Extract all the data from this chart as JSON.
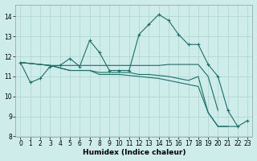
{
  "xlabel": "Humidex (Indice chaleur)",
  "bg_color": "#cdecea",
  "grid_color": "#aad4d0",
  "line_color": "#1e6e6a",
  "xlim": [
    -0.5,
    23.5
  ],
  "ylim": [
    8.0,
    14.6
  ],
  "yticks": [
    8,
    9,
    10,
    11,
    12,
    13,
    14
  ],
  "xticks": [
    0,
    1,
    2,
    3,
    4,
    5,
    6,
    7,
    8,
    9,
    10,
    11,
    12,
    13,
    14,
    15,
    16,
    17,
    18,
    19,
    20,
    21,
    22,
    23
  ],
  "lines": [
    {
      "x": [
        0,
        1,
        2,
        3,
        4,
        5,
        6,
        7,
        8,
        9,
        10,
        11,
        12,
        13,
        14,
        15,
        16,
        17,
        18,
        19,
        20,
        21,
        22,
        23
      ],
      "y": [
        11.7,
        10.7,
        10.9,
        11.5,
        11.55,
        11.9,
        11.5,
        12.8,
        12.2,
        11.3,
        11.3,
        11.3,
        13.1,
        13.6,
        14.1,
        13.8,
        13.1,
        12.6,
        12.6,
        11.6,
        11.0,
        9.3,
        8.5,
        8.8
      ],
      "marker": "+"
    },
    {
      "x": [
        0,
        3,
        5,
        6,
        7,
        8,
        10,
        11,
        12,
        13,
        14,
        15,
        16,
        17,
        18,
        19,
        20
      ],
      "y": [
        11.7,
        11.55,
        11.55,
        11.55,
        11.55,
        11.55,
        11.55,
        11.55,
        11.55,
        11.55,
        11.55,
        11.6,
        11.6,
        11.6,
        11.6,
        11.0,
        9.3
      ],
      "marker": null
    },
    {
      "x": [
        0,
        3,
        5,
        6,
        7,
        8,
        10,
        11,
        12,
        13,
        14,
        15,
        16,
        17,
        18,
        19,
        20,
        21
      ],
      "y": [
        11.7,
        11.55,
        11.3,
        11.3,
        11.3,
        11.2,
        11.2,
        11.2,
        11.1,
        11.1,
        11.05,
        11.0,
        10.9,
        10.8,
        11.0,
        9.2,
        8.5,
        8.5
      ],
      "marker": null
    },
    {
      "x": [
        0,
        3,
        5,
        6,
        7,
        8,
        10,
        12,
        14,
        16,
        18,
        19,
        20,
        21,
        22
      ],
      "y": [
        11.7,
        11.55,
        11.3,
        11.3,
        11.3,
        11.1,
        11.1,
        11.0,
        10.9,
        10.7,
        10.5,
        9.2,
        8.5,
        8.5,
        8.5
      ],
      "marker": null
    }
  ]
}
